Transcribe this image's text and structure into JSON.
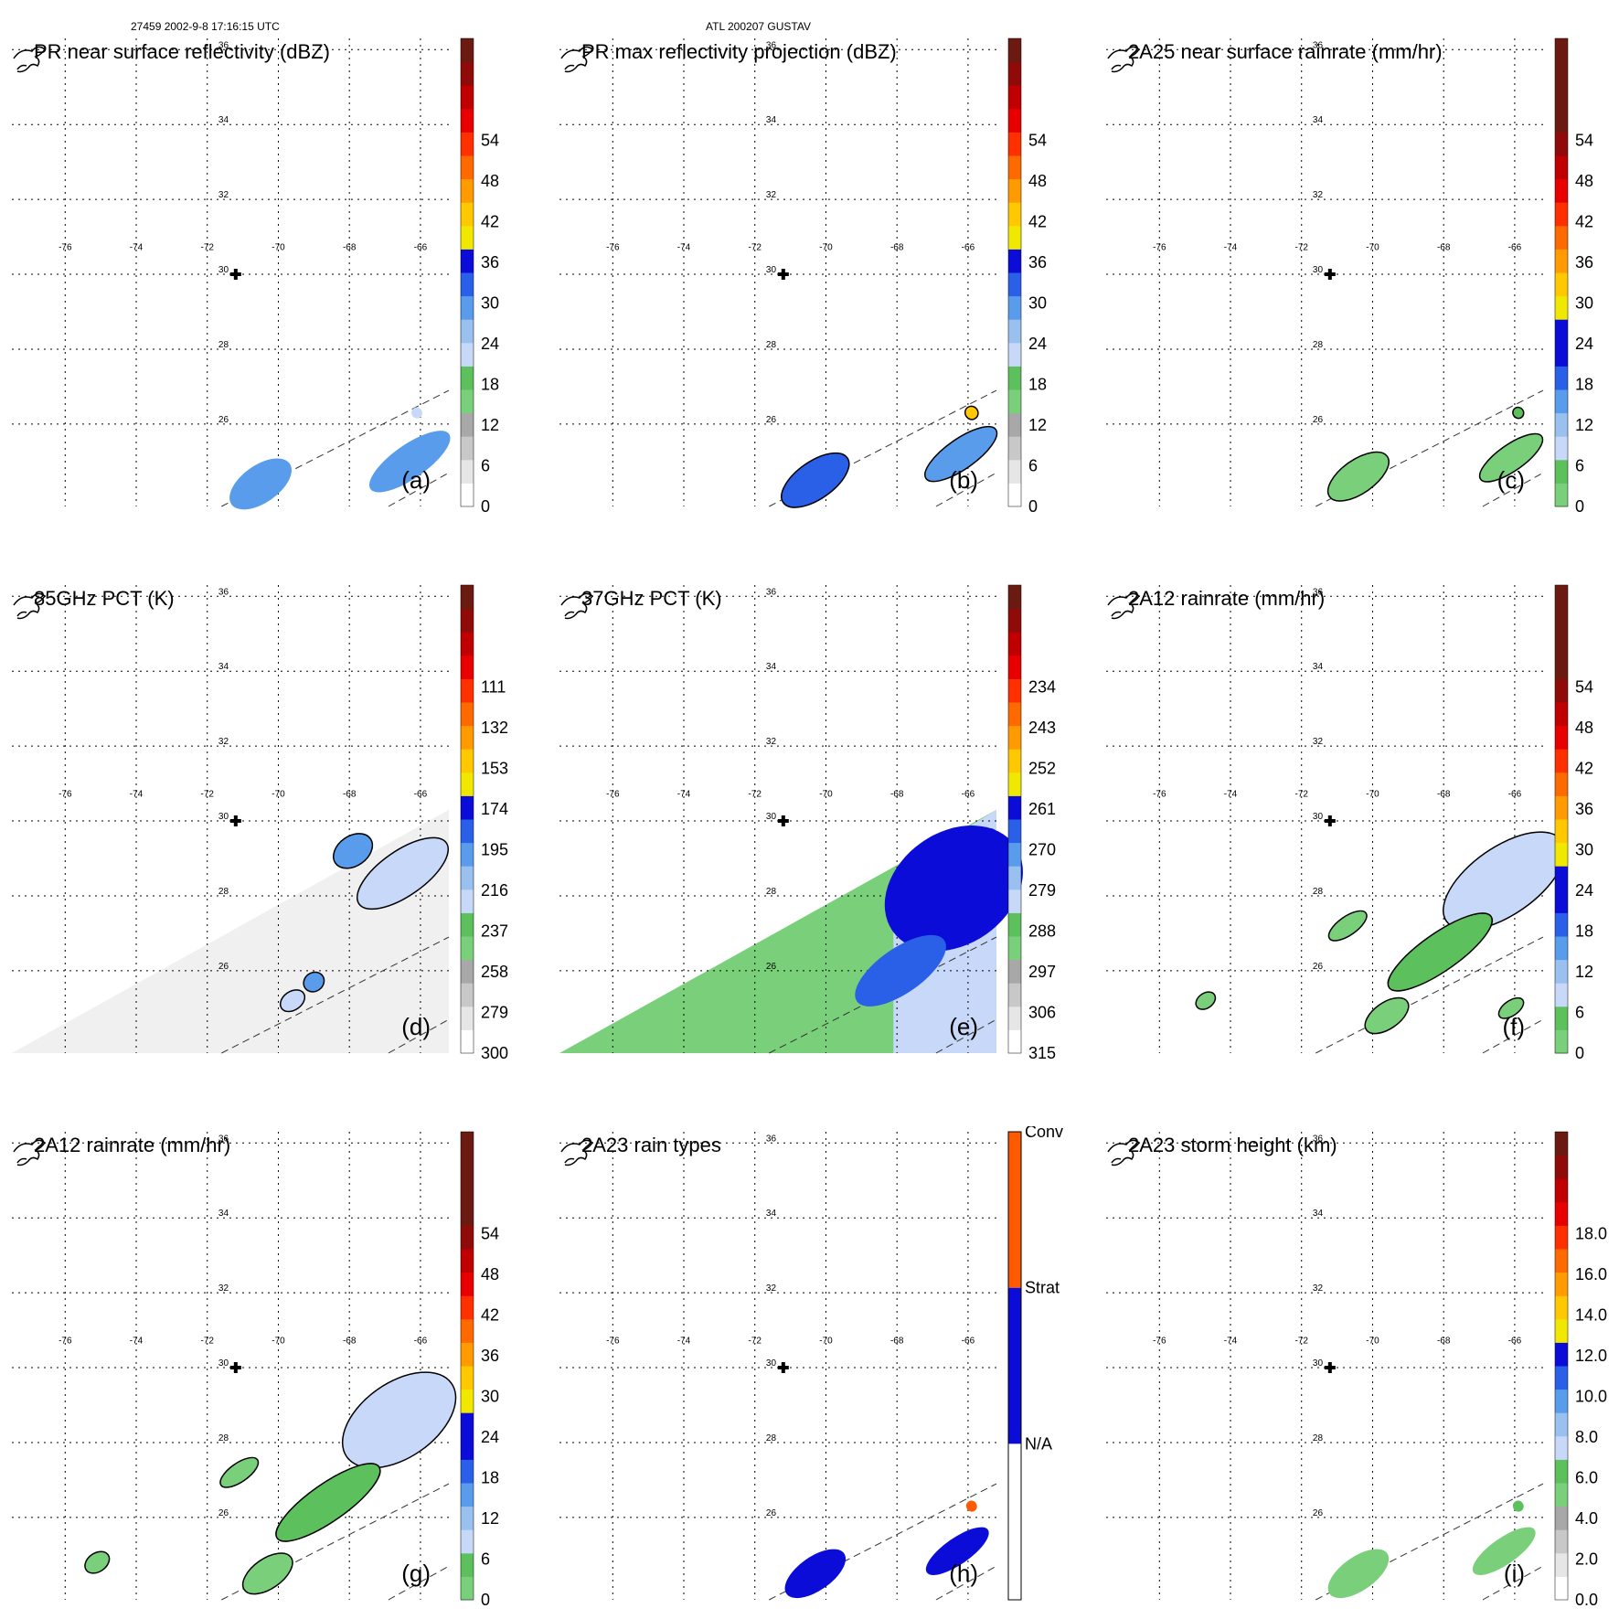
{
  "header": {
    "left": "27459 2002-9-8 17:16:15 UTC",
    "center": "ATL 200207 GUSTAV"
  },
  "map": {
    "lon_ticks": [
      "-76",
      "-74",
      "-72",
      "-70",
      "-68",
      "-66"
    ],
    "lat_ticks": [
      "36",
      "34",
      "32",
      "30",
      "28",
      "26"
    ],
    "storm_center": {
      "lon": -71.2,
      "lat": 30.0
    }
  },
  "chart_data": [
    {
      "type": "heatmap",
      "id": "a",
      "label": "(a)",
      "title": "PR near surface reflectivity (dBZ)",
      "colorbar_ticks": [
        "0",
        "6",
        "12",
        "18",
        "24",
        "30",
        "36",
        "42",
        "48",
        "54"
      ],
      "colorbar_colors": [
        "#ffffff",
        "#e6e6e6",
        "#c8c8c8",
        "#a8a8a8",
        "#7ad07a",
        "#5cc05c",
        "#c8d8f8",
        "#9ac0f0",
        "#5a9cec",
        "#2a60e8",
        "#0c0cd8",
        "#f0e800",
        "#ffc800",
        "#ff9a00",
        "#ff6a00",
        "#ff3000",
        "#e80000",
        "#c00000",
        "#900a0a",
        "#6a1a10"
      ],
      "colorbar_range": [
        0,
        60
      ],
      "blobs": [
        {
          "lon": -70.5,
          "lat": 24.4,
          "v": 26,
          "r": 0.5,
          "stretch": 2.0,
          "kind": "dot"
        },
        {
          "lon": -66.3,
          "lat": 25.0,
          "v": 24,
          "r": 0.45,
          "stretch": 3.0,
          "kind": "dot"
        },
        {
          "lon": -66.1,
          "lat": 26.3,
          "v": 20,
          "r": 0.15,
          "stretch": 1.0,
          "kind": "dot"
        }
      ]
    },
    {
      "type": "heatmap",
      "id": "b",
      "label": "(b)",
      "title": "PR max reflectivity projection (dBZ)",
      "colorbar_ticks": [
        "0",
        "6",
        "12",
        "18",
        "24",
        "30",
        "36",
        "42",
        "48",
        "54"
      ],
      "colorbar_colors": [
        "#ffffff",
        "#e6e6e6",
        "#c8c8c8",
        "#a8a8a8",
        "#7ad07a",
        "#5cc05c",
        "#c8d8f8",
        "#9ac0f0",
        "#5a9cec",
        "#2a60e8",
        "#0c0cd8",
        "#f0e800",
        "#ffc800",
        "#ff9a00",
        "#ff6a00",
        "#ff3000",
        "#e80000",
        "#c00000",
        "#900a0a",
        "#6a1a10"
      ],
      "colorbar_range": [
        0,
        60
      ],
      "blobs": [
        {
          "lon": -70.3,
          "lat": 24.5,
          "v": 28,
          "r": 0.5,
          "stretch": 2.2,
          "kind": "outline"
        },
        {
          "lon": -66.2,
          "lat": 25.2,
          "v": 26,
          "r": 0.4,
          "stretch": 3.0,
          "kind": "outline"
        },
        {
          "lon": -65.9,
          "lat": 26.3,
          "v": 36,
          "r": 0.18,
          "stretch": 1.0,
          "kind": "outline"
        }
      ]
    },
    {
      "type": "heatmap",
      "id": "c",
      "label": "(c)",
      "title": "2A25 near surface rainrate (mm/hr)",
      "colorbar_ticks": [
        "0",
        "6",
        "12",
        "18",
        "24",
        "30",
        "36",
        "42",
        "48",
        "54"
      ],
      "colorbar_colors": [
        "#7ad07a",
        "#5cc05c",
        "#c8d8f8",
        "#9ac0f0",
        "#5a9cec",
        "#2a60e8",
        "#0c0cd8",
        "#0c0cd8",
        "#f0e800",
        "#ffc800",
        "#ff9a00",
        "#ff6a00",
        "#ff3000",
        "#e80000",
        "#c00000",
        "#900a0a",
        "#6a1a10",
        "#6a1a10",
        "#6a1a10",
        "#6a1a10"
      ],
      "colorbar_range": [
        0,
        60
      ],
      "blobs": [
        {
          "lon": -70.4,
          "lat": 24.6,
          "v": 2,
          "r": 0.45,
          "stretch": 2.2,
          "kind": "outline"
        },
        {
          "lon": -66.1,
          "lat": 25.1,
          "v": 2,
          "r": 0.35,
          "stretch": 3.0,
          "kind": "outline"
        },
        {
          "lon": -65.9,
          "lat": 26.3,
          "v": 3,
          "r": 0.15,
          "stretch": 1.0,
          "kind": "outline"
        }
      ]
    },
    {
      "type": "heatmap",
      "id": "d",
      "label": "(d)",
      "title": "85GHz PCT (K)",
      "colorbar_ticks": [
        "300",
        "279",
        "258",
        "237",
        "216",
        "195",
        "174",
        "153",
        "132",
        "111"
      ],
      "colorbar_colors": [
        "#ffffff",
        "#e6e6e6",
        "#c8c8c8",
        "#a8a8a8",
        "#7ad07a",
        "#5cc05c",
        "#c8d8f8",
        "#9ac0f0",
        "#5a9cec",
        "#2a60e8",
        "#0c0cd8",
        "#f0e800",
        "#ffc800",
        "#ff9a00",
        "#ff6a00",
        "#ff3000",
        "#e80000",
        "#c00000",
        "#900a0a",
        "#6a1a10"
      ],
      "colorbar_range": [
        0,
        60
      ],
      "swath_fill": "#f0f0f0",
      "blobs": [
        {
          "lon": -66.5,
          "lat": 28.6,
          "v": 20,
          "r": 0.6,
          "stretch": 2.5,
          "kind": "outline"
        },
        {
          "lon": -67.9,
          "lat": 29.2,
          "v": 24,
          "r": 0.4,
          "stretch": 1.5,
          "kind": "outline"
        },
        {
          "lon": -69.0,
          "lat": 25.7,
          "v": 26,
          "r": 0.25,
          "stretch": 1.2,
          "kind": "outline"
        },
        {
          "lon": -69.6,
          "lat": 25.2,
          "v": 20,
          "r": 0.25,
          "stretch": 1.5,
          "kind": "outline"
        }
      ]
    },
    {
      "type": "heatmap",
      "id": "e",
      "label": "(e)",
      "title": "37GHz PCT (K)",
      "colorbar_ticks": [
        "315",
        "306",
        "297",
        "288",
        "279",
        "270",
        "261",
        "252",
        "243",
        "234"
      ],
      "colorbar_colors": [
        "#ffffff",
        "#e6e6e6",
        "#c8c8c8",
        "#a8a8a8",
        "#7ad07a",
        "#5cc05c",
        "#c8d8f8",
        "#9ac0f0",
        "#5a9cec",
        "#2a60e8",
        "#0c0cd8",
        "#f0e800",
        "#ffc800",
        "#ff9a00",
        "#ff6a00",
        "#ff3000",
        "#e80000",
        "#c00000",
        "#900a0a",
        "#6a1a10"
      ],
      "colorbar_range": [
        0,
        60
      ],
      "swath_fill": "#7ad07a",
      "blobs": [
        {
          "lon": -66.4,
          "lat": 28.2,
          "v": 30,
          "r": 1.5,
          "stretch": 1.4,
          "kind": "dot"
        },
        {
          "lon": -65.7,
          "lat": 29.4,
          "v": 31,
          "r": 0.3,
          "stretch": 2.0,
          "kind": "dot"
        },
        {
          "lon": -67.9,
          "lat": 26.0,
          "v": 28,
          "r": 0.6,
          "stretch": 2.5,
          "kind": "dot"
        }
      ]
    },
    {
      "type": "heatmap",
      "id": "f",
      "label": "(f)",
      "title": "2A12 rainrate (mm/hr)",
      "colorbar_ticks": [
        "0",
        "6",
        "12",
        "18",
        "24",
        "30",
        "36",
        "42",
        "48",
        "54"
      ],
      "colorbar_colors": [
        "#7ad07a",
        "#5cc05c",
        "#c8d8f8",
        "#9ac0f0",
        "#5a9cec",
        "#2a60e8",
        "#0c0cd8",
        "#0c0cd8",
        "#f0e800",
        "#ffc800",
        "#ff9a00",
        "#ff6a00",
        "#ff3000",
        "#e80000",
        "#c00000",
        "#900a0a",
        "#6a1a10",
        "#6a1a10",
        "#6a1a10",
        "#6a1a10"
      ],
      "colorbar_range": [
        0,
        60
      ],
      "blobs": [
        {
          "lon": -66.3,
          "lat": 28.4,
          "v": 6,
          "r": 0.9,
          "stretch": 2.2,
          "kind": "outline"
        },
        {
          "lon": -68.1,
          "lat": 26.5,
          "v": 4,
          "r": 0.5,
          "stretch": 3.5,
          "kind": "outline"
        },
        {
          "lon": -69.6,
          "lat": 24.8,
          "v": 2,
          "r": 0.35,
          "stretch": 2.0,
          "kind": "outline"
        },
        {
          "lon": -70.7,
          "lat": 27.2,
          "v": 2,
          "r": 0.25,
          "stretch": 2.5,
          "kind": "outline"
        },
        {
          "lon": -74.7,
          "lat": 25.2,
          "v": 2,
          "r": 0.2,
          "stretch": 1.5,
          "kind": "outline"
        },
        {
          "lon": -66.1,
          "lat": 25.0,
          "v": 2,
          "r": 0.2,
          "stretch": 2.0,
          "kind": "outline"
        }
      ]
    },
    {
      "type": "heatmap",
      "id": "g",
      "label": "(g)",
      "title": "2A12 rainrate (mm/hr)",
      "colorbar_ticks": [
        "0",
        "6",
        "12",
        "18",
        "24",
        "30",
        "36",
        "42",
        "48",
        "54"
      ],
      "colorbar_colors": [
        "#7ad07a",
        "#5cc05c",
        "#c8d8f8",
        "#9ac0f0",
        "#5a9cec",
        "#2a60e8",
        "#0c0cd8",
        "#0c0cd8",
        "#f0e800",
        "#ffc800",
        "#ff9a00",
        "#ff6a00",
        "#ff3000",
        "#e80000",
        "#c00000",
        "#900a0a",
        "#6a1a10",
        "#6a1a10",
        "#6a1a10",
        "#6a1a10"
      ],
      "colorbar_range": [
        0,
        60
      ],
      "blobs": [
        {
          "lon": -66.6,
          "lat": 28.6,
          "v": 8,
          "r": 1.0,
          "stretch": 1.8,
          "kind": "outline"
        },
        {
          "lon": -68.6,
          "lat": 26.4,
          "v": 4,
          "r": 0.5,
          "stretch": 3.5,
          "kind": "outline"
        },
        {
          "lon": -70.3,
          "lat": 24.5,
          "v": 2,
          "r": 0.4,
          "stretch": 2.0,
          "kind": "outline"
        },
        {
          "lon": -71.1,
          "lat": 27.2,
          "v": 2,
          "r": 0.25,
          "stretch": 2.5,
          "kind": "outline"
        },
        {
          "lon": -75.1,
          "lat": 24.8,
          "v": 2,
          "r": 0.25,
          "stretch": 1.5,
          "kind": "outline"
        }
      ]
    },
    {
      "type": "heatmap",
      "id": "h",
      "label": "(h)",
      "title": "2A23 rain types",
      "colorbar_ticks": [
        "N/A",
        "Strat",
        "Conv"
      ],
      "colorbar_colors": [
        "#ffffff",
        "#0c0cd8",
        "#ff5a00"
      ],
      "colorbar_range": [
        0,
        3
      ],
      "categorical": true,
      "blobs": [
        {
          "lon": -70.3,
          "lat": 24.5,
          "v": 1.5,
          "r": 0.45,
          "stretch": 2.2,
          "kind": "dot"
        },
        {
          "lon": -66.3,
          "lat": 25.1,
          "v": 1.5,
          "r": 0.35,
          "stretch": 3.0,
          "kind": "dot"
        },
        {
          "lon": -65.9,
          "lat": 26.3,
          "v": 2.5,
          "r": 0.15,
          "stretch": 1.0,
          "kind": "dot"
        }
      ]
    },
    {
      "type": "heatmap",
      "id": "i",
      "label": "(i)",
      "title": "2A23 storm height (km)",
      "colorbar_ticks": [
        "0.0",
        "2.0",
        "4.0",
        "6.0",
        "8.0",
        "10.0",
        "12.0",
        "14.0",
        "16.0",
        "18.0"
      ],
      "colorbar_colors": [
        "#ffffff",
        "#e6e6e6",
        "#c8c8c8",
        "#a8a8a8",
        "#7ad07a",
        "#5cc05c",
        "#c8d8f8",
        "#9ac0f0",
        "#5a9cec",
        "#2a60e8",
        "#0c0cd8",
        "#f0e800",
        "#ffc800",
        "#ff9a00",
        "#ff6a00",
        "#ff3000",
        "#e80000",
        "#c00000",
        "#900a0a",
        "#6a1a10"
      ],
      "colorbar_range": [
        0,
        20
      ],
      "blobs": [
        {
          "lon": -70.4,
          "lat": 24.5,
          "v": 4,
          "r": 0.45,
          "stretch": 2.2,
          "kind": "dot"
        },
        {
          "lon": -66.3,
          "lat": 25.1,
          "v": 4,
          "r": 0.35,
          "stretch": 3.0,
          "kind": "dot"
        },
        {
          "lon": -65.9,
          "lat": 26.3,
          "v": 5,
          "r": 0.15,
          "stretch": 1.0,
          "kind": "dot"
        }
      ]
    }
  ]
}
